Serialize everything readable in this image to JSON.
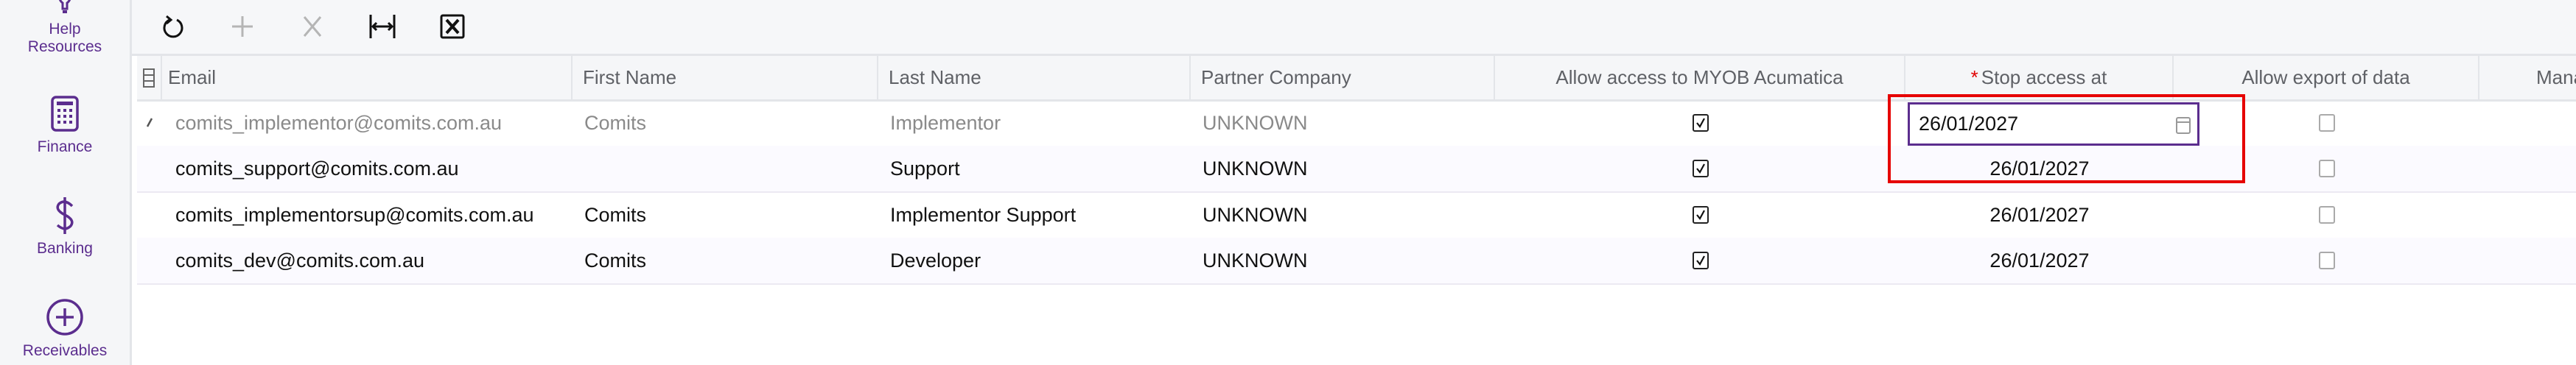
{
  "sidebar": {
    "items": [
      {
        "label_line1": "Help",
        "label_line2": "Resources",
        "icon": "lightbulb-icon"
      },
      {
        "label": "Finance",
        "icon": "calculator-icon"
      },
      {
        "label": "Banking",
        "icon": "dollar-icon"
      },
      {
        "label": "Receivables",
        "icon": "plus-circle-icon"
      }
    ],
    "accent": "#5b2d8e"
  },
  "toolbar": {
    "buttons": [
      "refresh-icon",
      "add-icon",
      "delete-icon",
      "fit-columns-icon",
      "export-excel-icon"
    ]
  },
  "grid": {
    "columns": [
      "Email",
      "First Name",
      "Last Name",
      "Partner Company",
      "Allow access to MYOB Acumatica",
      "Stop access at",
      "Allow export of data",
      "Mana"
    ],
    "required_marker": "*",
    "rows": [
      {
        "email": "comits_implementor@comits.com.au",
        "first": "Comits",
        "last": "Implementor",
        "partner": "UNKNOWN",
        "allow_access": true,
        "stop_at": "26/01/2027",
        "allow_export": false,
        "editing": true
      },
      {
        "email": "comits_support@comits.com.au",
        "first": "",
        "last": "Support",
        "partner": "UNKNOWN",
        "allow_access": true,
        "stop_at": "26/01/2027",
        "allow_export": false
      },
      {
        "email": "comits_implementorsup@comits.com.au",
        "first": "Comits",
        "last": "Implementor Support",
        "partner": "UNKNOWN",
        "allow_access": true,
        "stop_at": "26/01/2027",
        "allow_export": false
      },
      {
        "email": "comits_dev@comits.com.au",
        "first": "Comits",
        "last": "Developer",
        "partner": "UNKNOWN",
        "allow_access": true,
        "stop_at": "26/01/2027",
        "allow_export": false
      }
    ]
  },
  "highlight_color": "#e60000"
}
